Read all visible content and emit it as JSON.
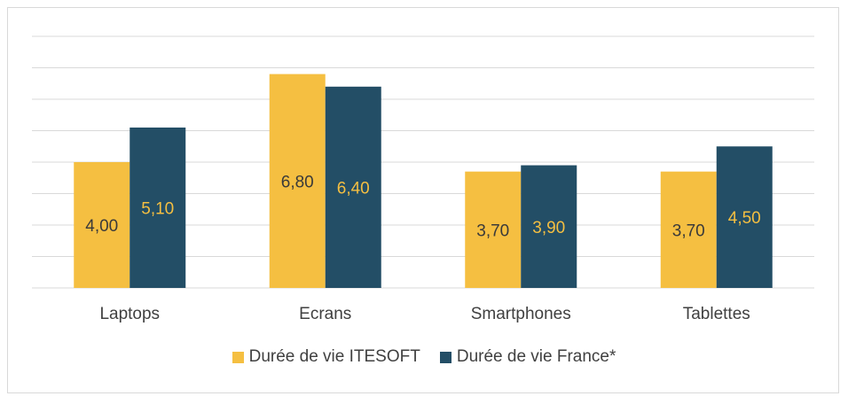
{
  "chart_data": {
    "type": "bar",
    "categories": [
      "Laptops",
      "Ecrans",
      "Smartphones",
      "Tablettes"
    ],
    "series": [
      {
        "name": "Durée de vie ITESOFT",
        "values": [
          4.0,
          6.8,
          3.7,
          3.7
        ],
        "labels": [
          "4,00",
          "6,80",
          "3,70",
          "3,70"
        ],
        "color": "#F5BF41",
        "label_color": "#3a3a3a"
      },
      {
        "name": "Durée de vie France*",
        "values": [
          5.1,
          6.4,
          3.9,
          4.5
        ],
        "labels": [
          "5,10",
          "6,40",
          "3,90",
          "4,50"
        ],
        "color": "#234E66",
        "label_color": "#F5BF41"
      }
    ],
    "ylim": [
      0,
      8
    ],
    "grid": true,
    "legend_position": "bottom"
  }
}
